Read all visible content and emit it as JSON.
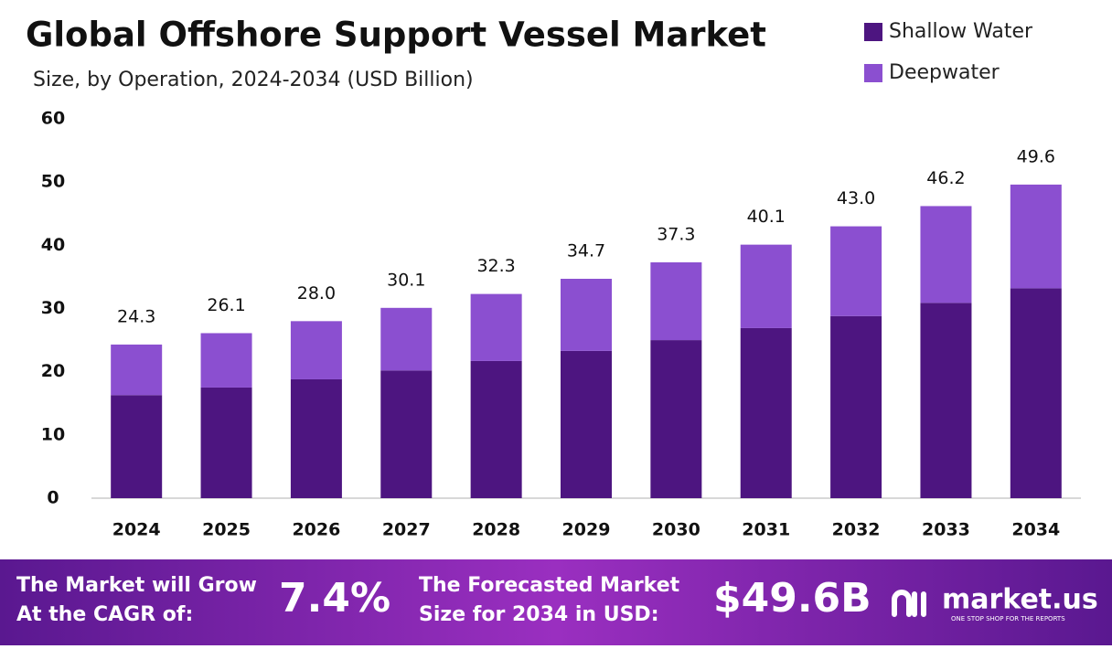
{
  "chart_data": {
    "type": "stacked_bar",
    "title": "Global Offshore Support Vessel Market",
    "subtitle": "Size, by Operation, 2024-2034 (USD Billion)",
    "categories": [
      "2024",
      "2025",
      "2026",
      "2027",
      "2028",
      "2029",
      "2030",
      "2031",
      "2032",
      "2033",
      "2034"
    ],
    "series": [
      {
        "name": "Shallow Water",
        "color": "#4d1580",
        "values": [
          16.3,
          17.5,
          18.8,
          20.2,
          21.7,
          23.3,
          25.0,
          26.9,
          28.8,
          30.9,
          33.2
        ]
      },
      {
        "name": "Deepwater",
        "color": "#8b4fd0",
        "values": [
          8.0,
          8.6,
          9.2,
          9.9,
          10.6,
          11.4,
          12.3,
          13.2,
          14.2,
          15.3,
          16.4
        ]
      }
    ],
    "totals": [
      24.3,
      26.1,
      28,
      30.1,
      32.3,
      34.7,
      37.3,
      40.1,
      43,
      46.2,
      49.6
    ],
    "total_labels": [
      "24.3",
      "26.1",
      "28.0",
      "30.1",
      "32.3",
      "34.7",
      "37.3",
      "40.1",
      "43.0",
      "46.2",
      "49.6"
    ],
    "ylim": [
      0,
      60
    ],
    "yticks": [
      0,
      10,
      20,
      30,
      40,
      50,
      60
    ],
    "grid": false,
    "legend": "top-right"
  },
  "footer": {
    "cagr_text": [
      "The Market will Grow",
      "At the CAGR of:"
    ],
    "cagr": "7.4%",
    "forecast_text": [
      "The Forecasted Market",
      "Size for 2034 in USD:"
    ],
    "forecast": "$49.6B",
    "brand": "market.us",
    "tagline": "ONE STOP SHOP FOR THE REPORTS"
  }
}
